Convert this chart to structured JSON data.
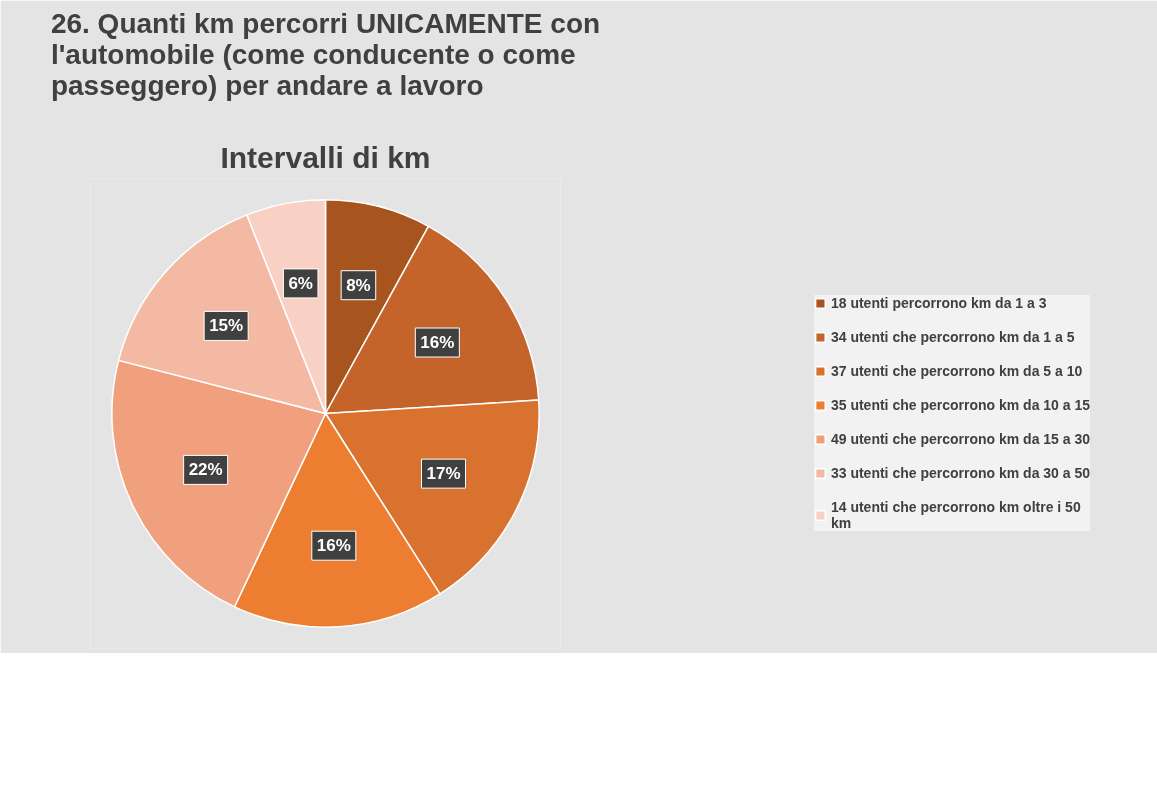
{
  "chart_data": {
    "type": "pie",
    "title": "26. Quanti km percorri UNICAMENTE con l'automobile (come conducente o come passeggero) per andare a lavoro",
    "subtitle": "Intervalli di km",
    "categories": [
      "18 utenti percorrono km da 1 a 3",
      "34 utenti che percorrono km da 1 a 5",
      "37 utenti che percorrono km da 5 a 10",
      "35 utenti che percorrono km da 10 a 15",
      "49 utenti che percorrono km da 15 a 30",
      "33 utenti che percorrono km da 30 a 50",
      "14 utenti che percorrono km oltre i 50 km"
    ],
    "values": [
      8,
      16,
      17,
      16,
      22,
      15,
      6
    ],
    "colors": [
      "#a8541f",
      "#c4632a",
      "#d9722f",
      "#ed7d31",
      "#f0a07c",
      "#f4b9a2",
      "#f8d1c4"
    ],
    "value_labels": [
      "8%",
      "16%",
      "17%",
      "16%",
      "22%",
      "15%",
      "6%"
    ],
    "legend": "right"
  }
}
